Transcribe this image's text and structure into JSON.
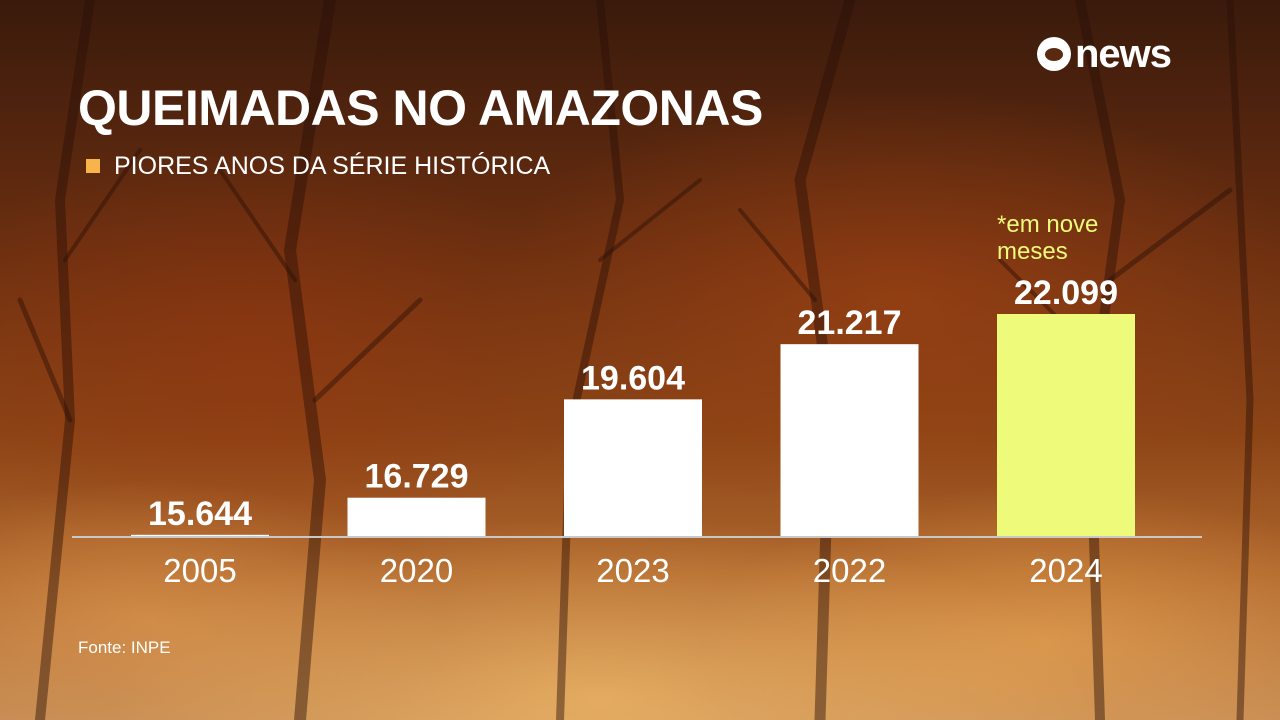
{
  "brand": {
    "logo_text": "news"
  },
  "chart_data": {
    "type": "bar",
    "title": "QUEIMADAS NO AMAZONAS",
    "subtitle": "PIORES ANOS DA SÉRIE HISTÓRICA",
    "categories": [
      "2005",
      "2020",
      "2023",
      "2022",
      "2024"
    ],
    "values": [
      15644,
      16729,
      19604,
      21217,
      22099
    ],
    "value_labels": [
      "15.644",
      "16.729",
      "19.604",
      "21.217",
      "22.099"
    ],
    "annotation": {
      "category": "2024",
      "text_lines": [
        "*em nove",
        "meses"
      ]
    },
    "highlight_category": "2024",
    "ylim": [
      0,
      22099
    ],
    "grid": false,
    "legend_position": "top-left",
    "colors": {
      "bar": "#ffffff",
      "highlight_bar": "#eefa7a",
      "annotation": "#eefa7a",
      "legend_swatch": "#f6b44a",
      "baseline": "#c8c8c8"
    }
  },
  "source": "Fonte: INPE"
}
